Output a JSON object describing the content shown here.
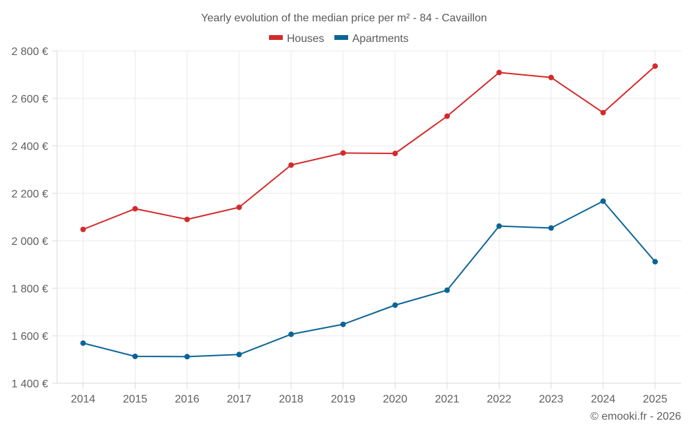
{
  "chart_data": {
    "type": "line",
    "title": "Yearly evolution of the median price per m² - 84 - Cavaillon",
    "xlabel": "",
    "ylabel": "",
    "x": [
      "2014",
      "2015",
      "2016",
      "2017",
      "2018",
      "2019",
      "2020",
      "2021",
      "2022",
      "2023",
      "2024",
      "2025"
    ],
    "ylim": [
      1400,
      2800
    ],
    "yticks": [
      1400,
      1600,
      1800,
      2000,
      2200,
      2400,
      2600,
      2800
    ],
    "ytick_labels": [
      "1 400 €",
      "1 600 €",
      "1 800 €",
      "2 000 €",
      "2 200 €",
      "2 400 €",
      "2 600 €",
      "2 800 €"
    ],
    "grid": true,
    "legend_position": "top-center",
    "series": [
      {
        "name": "Houses",
        "color": "#d42a2a",
        "values": [
          2048,
          2135,
          2090,
          2141,
          2319,
          2370,
          2368,
          2525,
          2709,
          2688,
          2540,
          2736
        ]
      },
      {
        "name": "Apartments",
        "color": "#0a6496",
        "values": [
          1569,
          1513,
          1512,
          1521,
          1606,
          1648,
          1729,
          1792,
          2062,
          2054,
          2167,
          1912
        ]
      }
    ],
    "credit": "© emooki.fr - 2026"
  }
}
